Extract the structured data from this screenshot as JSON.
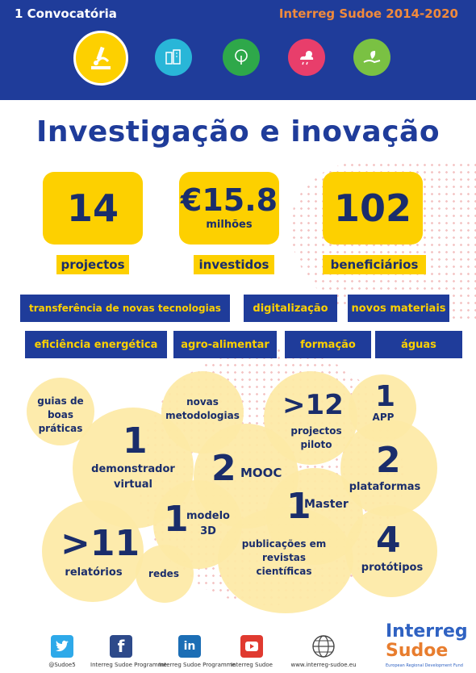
{
  "header": {
    "call": "1 Convocatória",
    "programme": "Interreg Sudoe 2014-2020",
    "icons": [
      "microscope-icon",
      "buildings-icon",
      "tree-icon",
      "weather-icon",
      "plant-hand-icon"
    ],
    "colors": {
      "banner": "#1f3c9a",
      "accent": "#f08a3c",
      "yellow": "#fdd000"
    }
  },
  "title": "Investigação e inovação",
  "stats": [
    {
      "value": "14",
      "sub": "",
      "label": "projectos"
    },
    {
      "value": "€15.8",
      "sub": "milhões",
      "label": "investidos"
    },
    {
      "value": "102",
      "sub": "",
      "label": "beneficiários"
    }
  ],
  "tags": [
    "transferência de novas tecnologias",
    "digitalização",
    "novos materiais",
    "eficiência energética",
    "agro-alimentar",
    "formação",
    "águas"
  ],
  "outputs": {
    "guias": "guias de boas práticas",
    "metodologias": "novas metodologias",
    "pilot_num": ">12",
    "pilot_label": "projectos piloto",
    "app_num": "1",
    "app_label": "APP",
    "demo_num": "1",
    "demo_label": "demonstrador virtual",
    "mooc_num": "2",
    "mooc_label": "MOOC",
    "plat_num": "2",
    "plat_label": "plataformas",
    "modelo_num": "1",
    "modelo_label": "modelo 3D",
    "master_num": "1",
    "master_label": "Master",
    "rel_num": ">11",
    "rel_label": "relatórios",
    "redes": "redes",
    "pub": "publicações em revistas científicas",
    "proto_num": "4",
    "proto_label": "protótipos"
  },
  "footer": {
    "twitter": "@Sudoe5",
    "facebook": "Interreg Sudoe Programme",
    "linkedin": "Interreg Sudoe Programme",
    "youtube": "Interreg Sudoe",
    "web": "www.interreg-sudoe.eu",
    "logo_line1": "Interreg",
    "logo_line2": "Sudoe",
    "logo_tagline": "European Regional Development Fund"
  }
}
